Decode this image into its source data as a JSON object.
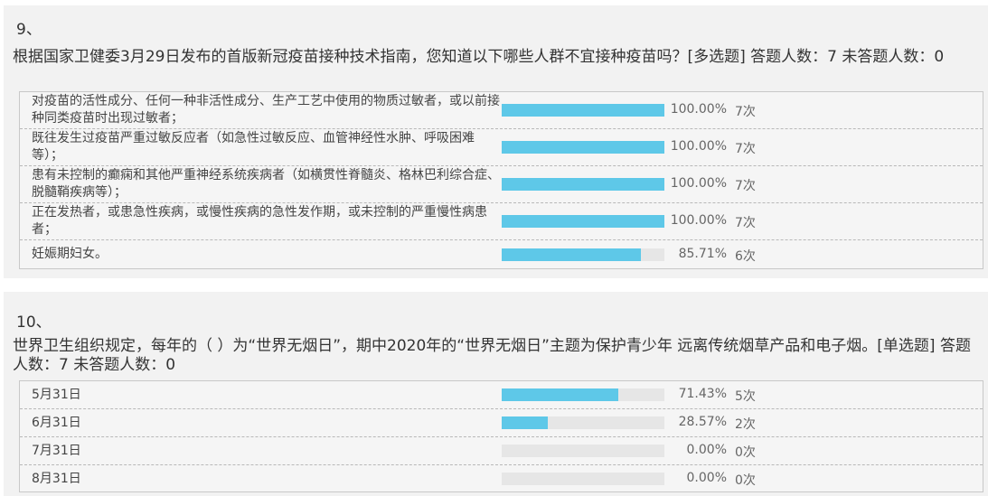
{
  "q9": {
    "number": "9、",
    "title": "根据国家卫健委3月29日发布的首版新冠疫苗接种技术指南，您知道以下哪些人群不宜接种疫苗吗？[多选题]  答题人数：7  未答题人数：0",
    "options": [
      {
        "label": "对疫苗的活性成分、任何一种非活性成分、生产工艺中使用的物质过敏者，或以前接种同类疫苗时出现过敏者；",
        "percent": "100.00%",
        "fraction": 1.0,
        "count": "7次"
      },
      {
        "label": "既往发生过疫苗严重过敏反应者（如急性过敏反应、血管神经性水肿、呼吸困难等）；",
        "percent": "100.00%",
        "fraction": 1.0,
        "count": "7次"
      },
      {
        "label": "患有未控制的癫痫和其他严重神经系统疾病者（如横贯性脊髓炎、格林巴利综合症、脱髓鞘疾病等）；",
        "percent": "100.00%",
        "fraction": 1.0,
        "count": "7次"
      },
      {
        "label": "正在发热者，或患急性疾病，或慢性疾病的急性发作期，或未控制的严重慢性病患者；",
        "percent": "100.00%",
        "fraction": 1.0,
        "count": "7次"
      },
      {
        "label": "妊娠期妇女。",
        "percent": "85.71%",
        "fraction": 0.8571,
        "count": "6次"
      }
    ]
  },
  "q10": {
    "number": "10、",
    "title": "世界卫生组织规定，每年的（ ）为“世界无烟日”，期中2020年的“世界无烟日”主题为保护青少年 远离传统烟草产品和电子烟。[单选题]  答题人数：7  未答题人数：0",
    "options": [
      {
        "label": "5月31日",
        "percent": "71.43%",
        "fraction": 0.7143,
        "count": "5次"
      },
      {
        "label": "6月31日",
        "percent": "28.57%",
        "fraction": 0.2857,
        "count": "2次"
      },
      {
        "label": "7月31日",
        "percent": "0.00%",
        "fraction": 0.0,
        "count": "0次"
      },
      {
        "label": "8月31日",
        "percent": "0.00%",
        "fraction": 0.0,
        "count": "0次"
      }
    ]
  },
  "colors": {
    "bar_fill": "#5ec8e8",
    "bar_track": "#e6e6e6",
    "panel_bg": "#f2f2f2"
  }
}
